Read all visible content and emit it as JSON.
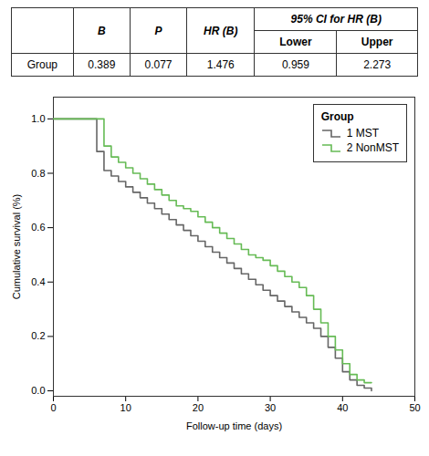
{
  "chart_data": {
    "type": "step",
    "table": {
      "columns": [
        "B",
        "P",
        "HR (B)"
      ],
      "column_group": "95% CI for HR (B)",
      "group_columns": [
        "Lower",
        "Upper"
      ],
      "rows": [
        [
          "Group",
          "0.389",
          "0.077",
          "1.476",
          "0.959",
          "2.273"
        ]
      ]
    },
    "xlabel": "Follow-up time (days)",
    "ylabel": "Cumulative survival (%)",
    "xlim": [
      0,
      50
    ],
    "ylim": [
      -0.02,
      1.08
    ],
    "xticks": [
      0,
      10,
      20,
      30,
      40,
      50
    ],
    "yticks": [
      {
        "value": 0.0,
        "label": "0.0"
      },
      0.2,
      0.4,
      0.6,
      0.8,
      {
        "value": 1.0,
        "label": "1.0"
      }
    ],
    "grid": false,
    "legend": "upper right",
    "legend_title": "Group",
    "series": [
      {
        "name": "1 MST",
        "color": "#666666",
        "x": [
          0,
          5,
          6,
          7,
          8,
          9,
          10,
          11,
          12,
          13,
          14,
          15,
          16,
          17,
          18,
          19,
          20,
          21,
          22,
          23,
          24,
          25,
          26,
          27,
          28,
          29,
          30,
          31,
          32,
          33,
          34,
          35,
          36,
          37,
          38,
          39,
          40,
          41,
          42,
          43,
          44
        ],
        "values": [
          1.0,
          1.0,
          0.88,
          0.81,
          0.79,
          0.77,
          0.75,
          0.73,
          0.71,
          0.69,
          0.67,
          0.65,
          0.63,
          0.61,
          0.59,
          0.57,
          0.55,
          0.53,
          0.51,
          0.49,
          0.47,
          0.45,
          0.43,
          0.41,
          0.39,
          0.37,
          0.35,
          0.33,
          0.31,
          0.29,
          0.27,
          0.25,
          0.23,
          0.2,
          0.16,
          0.12,
          0.07,
          0.04,
          0.02,
          0.01,
          0.0
        ]
      },
      {
        "name": "2 NonMST",
        "color": "#66bb55",
        "x": [
          0,
          6,
          7,
          8,
          9,
          10,
          11,
          12,
          13,
          14,
          15,
          16,
          17,
          18,
          19,
          20,
          21,
          22,
          23,
          24,
          25,
          26,
          27,
          28,
          29,
          30,
          31,
          32,
          33,
          34,
          35,
          36,
          37,
          38,
          39,
          40,
          41,
          42,
          43,
          44
        ],
        "values": [
          1.0,
          1.0,
          0.9,
          0.86,
          0.84,
          0.82,
          0.8,
          0.78,
          0.76,
          0.74,
          0.72,
          0.7,
          0.68,
          0.67,
          0.66,
          0.64,
          0.62,
          0.6,
          0.58,
          0.56,
          0.54,
          0.52,
          0.5,
          0.49,
          0.48,
          0.46,
          0.44,
          0.42,
          0.4,
          0.38,
          0.35,
          0.3,
          0.25,
          0.2,
          0.15,
          0.1,
          0.06,
          0.04,
          0.03,
          0.03
        ]
      }
    ]
  }
}
